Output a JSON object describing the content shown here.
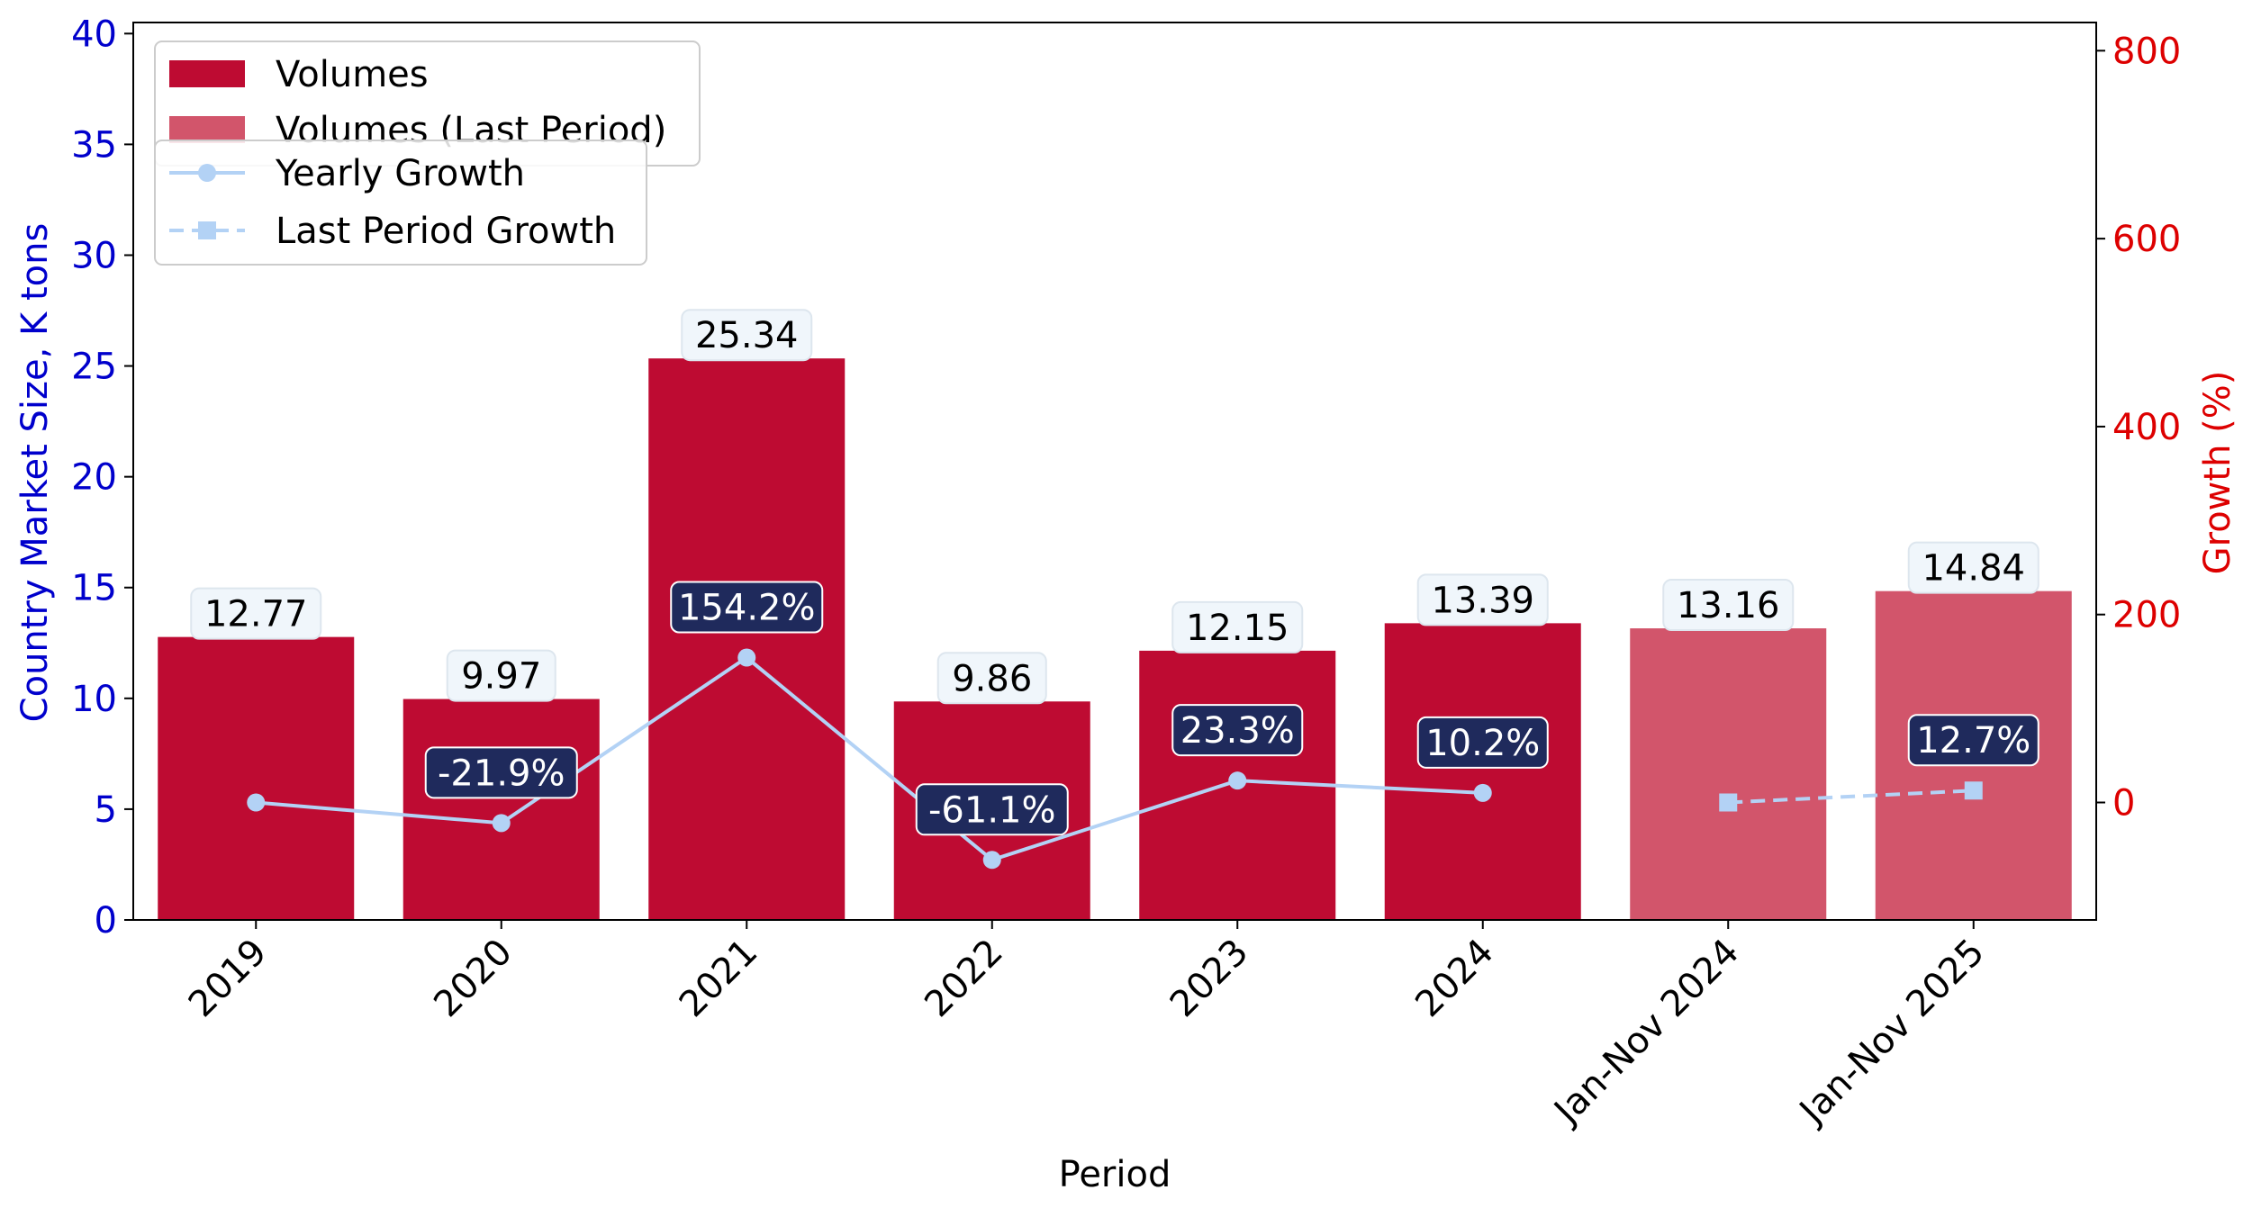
{
  "chart_data": {
    "type": "bar",
    "categories": [
      "2019",
      "2020",
      "2021",
      "2022",
      "2023",
      "2024",
      "Jan-Nov 2024",
      "Jan-Nov 2025"
    ],
    "xlabel": "Period",
    "ylabel": "Country Market Size, K tons",
    "y2label": "Growth (%)",
    "ylim": [
      0,
      40.5
    ],
    "y2lim": [
      -125,
      830
    ],
    "yticks": [
      "0",
      "5",
      "10",
      "15",
      "20",
      "25",
      "30",
      "35",
      "40"
    ],
    "y2ticks": [
      "0",
      "200",
      "400",
      "600",
      "800"
    ],
    "grid": false,
    "legend_placement": "top-left",
    "series": [
      {
        "name": "Volumes",
        "axis": "left",
        "kind": "bar",
        "color": "#BE0B32",
        "values": [
          12.77,
          9.97,
          25.34,
          9.86,
          12.15,
          13.39,
          null,
          null
        ],
        "labels": [
          "12.77",
          "9.97",
          "25.34",
          "9.86",
          "12.15",
          "13.39",
          "",
          ""
        ]
      },
      {
        "name": "Volumes (Last Period)",
        "axis": "left",
        "kind": "bar",
        "color": "#D2556B",
        "values": [
          null,
          null,
          null,
          null,
          null,
          null,
          13.16,
          14.84
        ],
        "labels": [
          "",
          "",
          "",
          "",
          "",
          "",
          "13.16",
          "14.84"
        ]
      },
      {
        "name": "Yearly Growth",
        "axis": "right",
        "kind": "line",
        "color": "#B3D2F5",
        "values": [
          0,
          -21.9,
          154.2,
          -61.1,
          23.3,
          10.2,
          null,
          null
        ],
        "labels": [
          "",
          "-21.9%",
          "154.2%",
          "-61.1%",
          "23.3%",
          "10.2%",
          "",
          ""
        ]
      },
      {
        "name": "Last Period Growth",
        "axis": "right",
        "kind": "line-dashed",
        "color": "#B3D2F5",
        "values": [
          null,
          null,
          null,
          null,
          null,
          null,
          0,
          12.7
        ],
        "labels": [
          "",
          "",
          "",
          "",
          "",
          "",
          "",
          "12.7%"
        ]
      }
    ],
    "colors": {
      "left_axis": "#0000CC",
      "right_axis": "#DD0000",
      "bar_label_bg": "#F0F6FB",
      "growth_label_bg": "#1F2A5C"
    }
  }
}
